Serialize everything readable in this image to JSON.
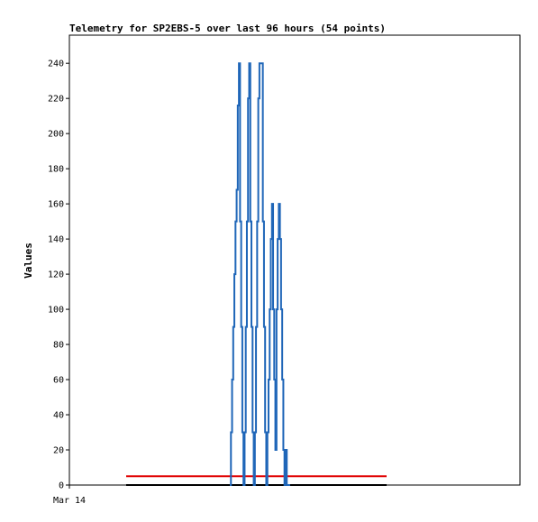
{
  "chart_data": {
    "type": "line",
    "title": "Telemetry for SP2EBS-5 over last 96 hours (54 points)",
    "xlabel": "",
    "ylabel": "Values",
    "ylim": [
      0,
      256
    ],
    "yticks": [
      0,
      20,
      40,
      60,
      80,
      100,
      120,
      140,
      160,
      180,
      200,
      220,
      240
    ],
    "xtick_labels": [
      "Mar 14"
    ],
    "grid": false,
    "legend": "none",
    "colors": {
      "series": "#1f66b8",
      "threshold": "#e00000",
      "baseline": "#000000"
    },
    "series": [
      {
        "values": [
          0,
          30,
          60,
          90,
          120,
          150,
          168,
          216,
          240,
          150,
          90,
          30,
          0,
          30,
          90,
          150,
          220,
          240,
          150,
          90,
          30,
          0,
          30,
          90,
          150,
          220,
          240,
          240,
          240,
          150,
          90,
          30,
          0,
          30,
          60,
          100,
          140,
          160,
          100,
          60,
          20,
          100,
          140,
          160,
          140,
          100,
          60,
          20,
          0,
          20,
          0,
          0,
          0,
          0
        ]
      }
    ],
    "threshold": {
      "value": 5
    },
    "baseline": {
      "value": 0
    }
  }
}
